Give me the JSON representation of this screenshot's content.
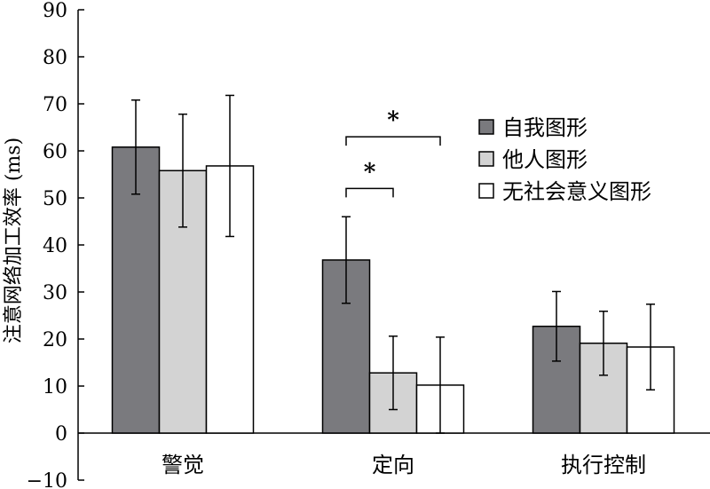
{
  "chart_data": {
    "type": "bar",
    "title": "",
    "xlabel": "",
    "ylabel": "注意网络加工效率 (ms)",
    "ylim": [
      -10,
      90
    ],
    "yticks": [
      -10,
      0,
      10,
      20,
      30,
      40,
      50,
      60,
      70,
      80,
      90
    ],
    "ytick_labels": [
      "−10",
      "0",
      "10",
      "20",
      "30",
      "40",
      "50",
      "60",
      "70",
      "80",
      "90"
    ],
    "categories": [
      "警觉",
      "定向",
      "执行控制"
    ],
    "series": [
      {
        "name": "自我图形",
        "color": "#7a7a7e",
        "values": [
          60.8,
          36.8,
          22.7
        ],
        "errors": [
          10.0,
          9.2,
          7.4
        ]
      },
      {
        "name": "他人图形",
        "color": "#d3d3d3",
        "values": [
          55.8,
          12.8,
          19.1
        ],
        "errors": [
          12.0,
          7.8,
          6.8
        ]
      },
      {
        "name": "无社会意义图形",
        "color": "#ffffff",
        "values": [
          56.8,
          10.2,
          18.3
        ],
        "errors": [
          15.0,
          10.2,
          9.1
        ]
      }
    ],
    "annotations": [
      {
        "text": "*",
        "category": "定向",
        "from_series": 0,
        "to_series": 1,
        "level": 52
      },
      {
        "text": "*",
        "category": "定向",
        "from_series": 0,
        "to_series": 2,
        "level": 63
      }
    ],
    "legend_position": "right",
    "grid": false
  }
}
